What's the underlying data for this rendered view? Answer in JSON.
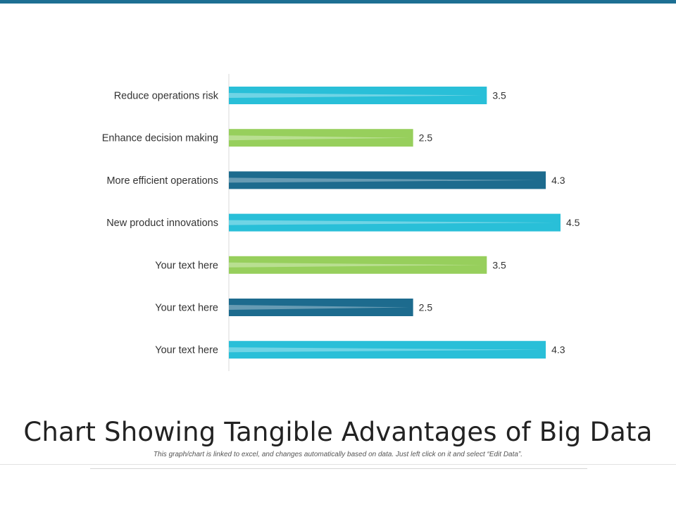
{
  "colors": {
    "accent": "#1d6f93",
    "cyan": "#29bfd8",
    "green": "#97cf5c",
    "navy": "#1d6b8e"
  },
  "chart_data": {
    "type": "bar",
    "orientation": "horizontal",
    "categories": [
      "Reduce operations risk",
      "Enhance decision making ",
      "More efficient operations",
      "New product innovations",
      "Your text here",
      "Your text here",
      "Your text here"
    ],
    "values": [
      3.5,
      2.5,
      4.3,
      4.5,
      3.5,
      2.5,
      4.3
    ],
    "bar_colors": [
      "#29bfd8",
      "#97cf5c",
      "#1d6b8e",
      "#29bfd8",
      "#97cf5c",
      "#1d6b8e",
      "#29bfd8"
    ],
    "xlim": [
      0,
      5
    ],
    "grid": false,
    "data_labels": true,
    "title": "Chart Showing Tangible Advantages  of Big Data",
    "xlabel": "",
    "ylabel": ""
  },
  "footer": {
    "title": "Chart Showing Tangible Advantages  of Big Data",
    "note": "This graph/chart  is linked to excel, and changes automatically based on data. Just left click on it and select “Edit Data”."
  }
}
